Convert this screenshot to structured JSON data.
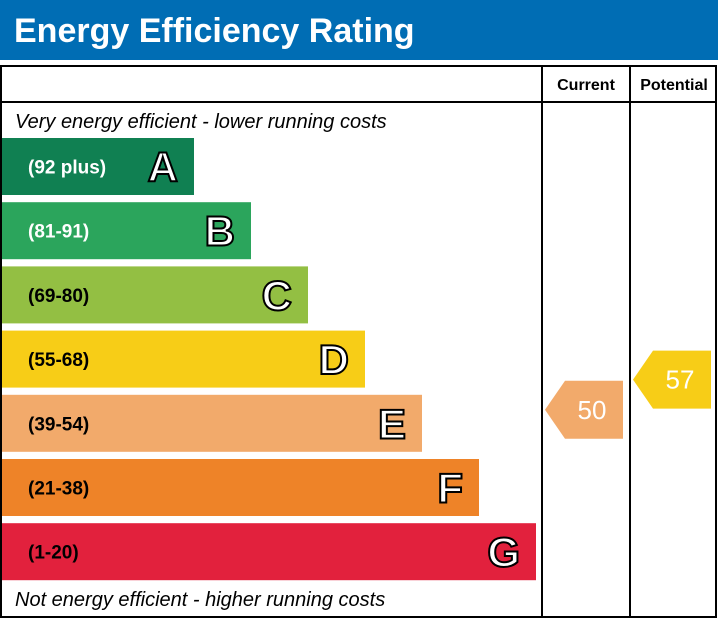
{
  "chart_data": {
    "type": "bar",
    "title": "Energy Efficiency Rating",
    "columns": [
      "Current",
      "Potential"
    ],
    "top_note": "Very energy efficient - lower running costs",
    "bottom_note": "Not energy efficient - higher running costs",
    "bands": [
      {
        "letter": "A",
        "range": "(92 plus)",
        "min": 92,
        "max": 100,
        "color": "#108052",
        "label_color": "#ffffff"
      },
      {
        "letter": "B",
        "range": "(81-91)",
        "min": 81,
        "max": 91,
        "color": "#2ba55c",
        "label_color": "#ffffff"
      },
      {
        "letter": "C",
        "range": "(69-80)",
        "min": 69,
        "max": 80,
        "color": "#93bf43",
        "label_color": "#000000"
      },
      {
        "letter": "D",
        "range": "(55-68)",
        "min": 55,
        "max": 68,
        "color": "#f7cd17",
        "label_color": "#000000"
      },
      {
        "letter": "E",
        "range": "(39-54)",
        "min": 39,
        "max": 54,
        "color": "#f2aa6b",
        "label_color": "#000000"
      },
      {
        "letter": "F",
        "range": "(21-38)",
        "min": 21,
        "max": 38,
        "color": "#ee8328",
        "label_color": "#000000"
      },
      {
        "letter": "G",
        "range": "(1-20)",
        "min": 1,
        "max": 20,
        "color": "#e2213d",
        "label_color": "#000000"
      }
    ],
    "current": {
      "value": 50,
      "band": "E",
      "color": "#f2aa6b"
    },
    "potential": {
      "value": 57,
      "band": "D",
      "color": "#f7cd17"
    },
    "header_color": "#006db4"
  }
}
